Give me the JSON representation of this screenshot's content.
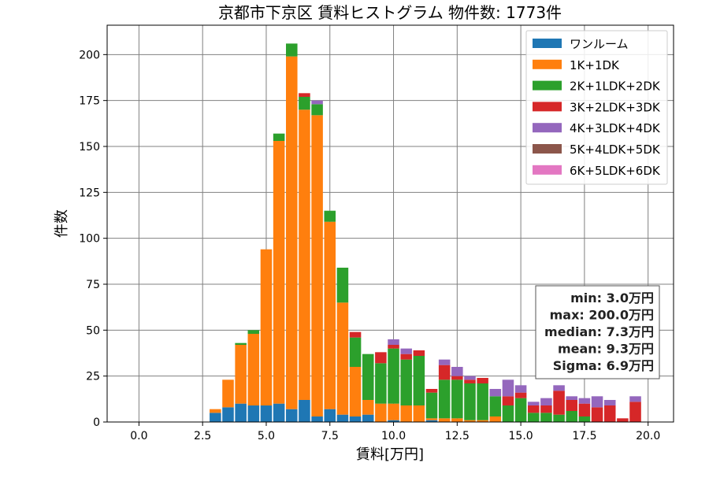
{
  "chart_data": {
    "type": "bar",
    "stacked": true,
    "title": "京都市下京区 賃料ヒストグラム 物件数: 1773件",
    "xlabel": "賃料[万円]",
    "ylabel": "件数",
    "xlim": [
      -1.25,
      21.0
    ],
    "ylim": [
      0,
      216
    ],
    "xticks": [
      0.0,
      2.5,
      5.0,
      7.5,
      10.0,
      12.5,
      15.0,
      17.5,
      20.0
    ],
    "xtick_labels": [
      "0.0",
      "2.5",
      "5.0",
      "7.5",
      "10.0",
      "12.5",
      "15.0",
      "17.5",
      "20.0"
    ],
    "yticks": [
      0,
      25,
      50,
      75,
      100,
      125,
      150,
      175,
      200
    ],
    "ytick_labels": [
      "0",
      "25",
      "50",
      "75",
      "100",
      "125",
      "150",
      "175",
      "200"
    ],
    "grid": true,
    "legend_position": "top-right",
    "bin_width": 0.5,
    "x": [
      3.0,
      3.5,
      4.0,
      4.5,
      5.0,
      5.5,
      6.0,
      6.5,
      7.0,
      7.5,
      8.0,
      8.5,
      9.0,
      9.5,
      10.0,
      10.5,
      11.0,
      11.5,
      12.0,
      12.5,
      13.0,
      13.5,
      14.0,
      14.5,
      15.0,
      15.5,
      16.0,
      16.5,
      17.0,
      17.5,
      18.0,
      18.5,
      19.0,
      19.5
    ],
    "series": [
      {
        "name": "ワンルーム",
        "color": "#1f77b4",
        "values": [
          5,
          8,
          10,
          9,
          9,
          10,
          7,
          12,
          3,
          7,
          4,
          3,
          4,
          0,
          1,
          0,
          0,
          1,
          0,
          0,
          0,
          0,
          0,
          0,
          0,
          0,
          0,
          0,
          0,
          0,
          0,
          0,
          0,
          0
        ]
      },
      {
        "name": "1K+1DK",
        "color": "#ff7f0e",
        "values": [
          2,
          15,
          32,
          39,
          85,
          143,
          192,
          158,
          164,
          102,
          61,
          27,
          8,
          10,
          9,
          9,
          9,
          1,
          2,
          2,
          1,
          1,
          3,
          0,
          0,
          0,
          0,
          0,
          0,
          0,
          0,
          0,
          0,
          0
        ]
      },
      {
        "name": "2K+1LDK+2DK",
        "color": "#2ca02c",
        "values": [
          0,
          0,
          1,
          2,
          0,
          4,
          7,
          7,
          6,
          6,
          19,
          16,
          25,
          22,
          30,
          25,
          27,
          14,
          21,
          21,
          20,
          20,
          11,
          9,
          13,
          5,
          5,
          4,
          6,
          3,
          0,
          0,
          0,
          0
        ]
      },
      {
        "name": "3K+2LDK+3DK",
        "color": "#d62728",
        "values": [
          0,
          0,
          0,
          0,
          0,
          0,
          0,
          2,
          0,
          0,
          0,
          3,
          0,
          6,
          2,
          3,
          3,
          2,
          8,
          2,
          2,
          3,
          0,
          5,
          3,
          4,
          4,
          13,
          6,
          7,
          8,
          9,
          2,
          11
        ]
      },
      {
        "name": "4K+3LDK+4DK",
        "color": "#9467bd",
        "values": [
          0,
          0,
          0,
          0,
          0,
          0,
          0,
          0,
          2,
          0,
          0,
          0,
          0,
          0,
          3,
          3,
          0,
          0,
          3,
          5,
          2,
          0,
          4,
          9,
          4,
          2,
          4,
          3,
          2,
          3,
          6,
          3,
          0,
          3
        ]
      },
      {
        "name": "5K+4LDK+5DK",
        "color": "#8c564b",
        "values": [
          0,
          0,
          0,
          0,
          0,
          0,
          0,
          0,
          0,
          0,
          0,
          0,
          0,
          0,
          0,
          0,
          0,
          0,
          0,
          0,
          0,
          0,
          0,
          0,
          0,
          0,
          0,
          0,
          0,
          0,
          0,
          0,
          0,
          0
        ]
      },
      {
        "name": "6K+5LDK+6DK",
        "color": "#e377c2",
        "values": [
          0,
          0,
          0,
          0,
          0,
          0,
          0,
          0,
          0,
          0,
          0,
          0,
          0,
          0,
          0,
          0,
          0,
          0,
          0,
          0,
          0,
          0,
          0,
          0,
          0,
          0,
          0,
          0,
          0,
          0,
          0,
          0,
          0,
          0
        ]
      }
    ],
    "stats_box": {
      "lines": [
        "min: 3.0万円",
        "max: 200.0万円",
        "median: 7.3万円",
        "mean: 9.3万円",
        "Sigma: 6.9万円"
      ],
      "position": "right-middle"
    }
  }
}
